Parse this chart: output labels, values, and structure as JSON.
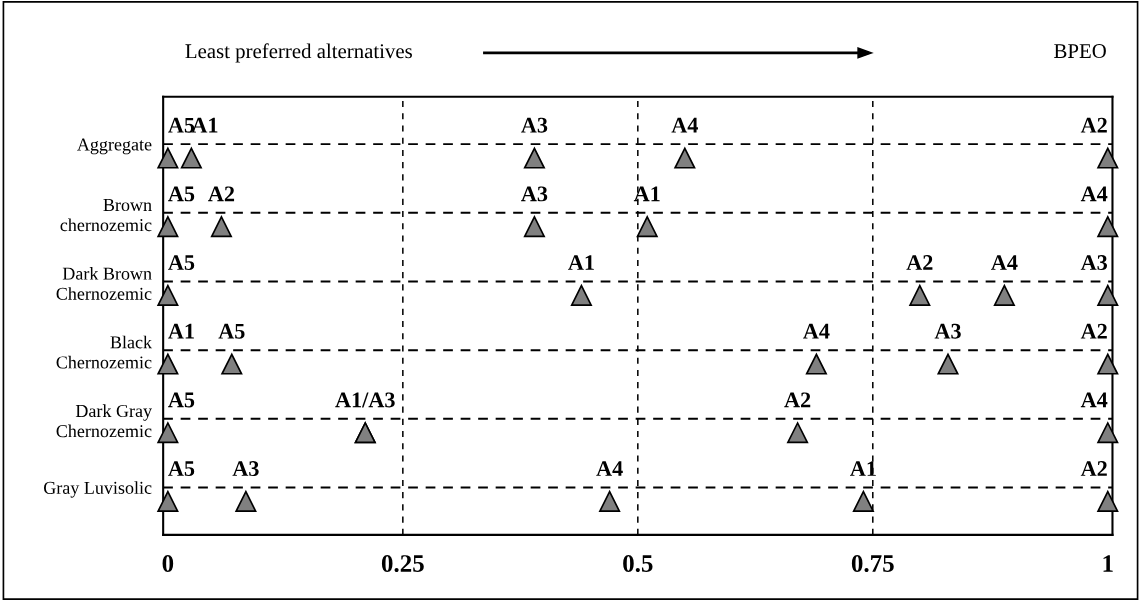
{
  "chart_data": {
    "type": "scatter",
    "orientation": "horizontal",
    "annotations": [
      "Least preferred alternatives",
      "BPEO"
    ],
    "categories": [
      "Aggregate",
      "Brown\nchernozemic",
      "Dark Brown\nChernozemic",
      "Black\nChernozemic",
      "Dark Gray\nChernozemic",
      "Gray Luvisolic"
    ],
    "series": [
      {
        "color": "#808080",
        "values": [
          0.025,
          0.51,
          0.44,
          0,
          0.21,
          0.74
        ],
        "value_labels": [
          "A1",
          "A1",
          "A1",
          "A1",
          "A1/A3",
          "A1"
        ]
      },
      {
        "color": "#808080",
        "values": [
          1,
          0.057,
          0.8,
          1,
          0.67,
          1
        ],
        "value_labels": [
          "A2",
          "A2",
          "A2",
          "A2",
          "A2",
          "A2"
        ]
      },
      {
        "color": "#808080",
        "values": [
          0.39,
          0.39,
          1,
          0.83,
          0.21,
          0.083
        ],
        "value_labels": [
          "A3",
          "A3",
          "A3",
          "A3",
          null,
          "A3"
        ]
      },
      {
        "color": "#808080",
        "values": [
          0.55,
          1,
          0.89,
          0.69,
          1,
          0.47
        ],
        "value_labels": [
          "A4",
          "A4",
          "A4",
          "A4",
          "A4",
          "A4"
        ]
      },
      {
        "color": "#808080",
        "values": [
          0,
          0,
          0,
          0.068,
          0,
          0
        ],
        "value_labels": [
          "A5",
          "A5",
          "A5",
          "A5",
          "A5",
          "A5"
        ]
      }
    ],
    "xlim": [
      -0.005,
      1.005
    ],
    "xticks": [
      0,
      0.25,
      0.5,
      0.75,
      1
    ],
    "grid": true,
    "marker": "triangle"
  }
}
